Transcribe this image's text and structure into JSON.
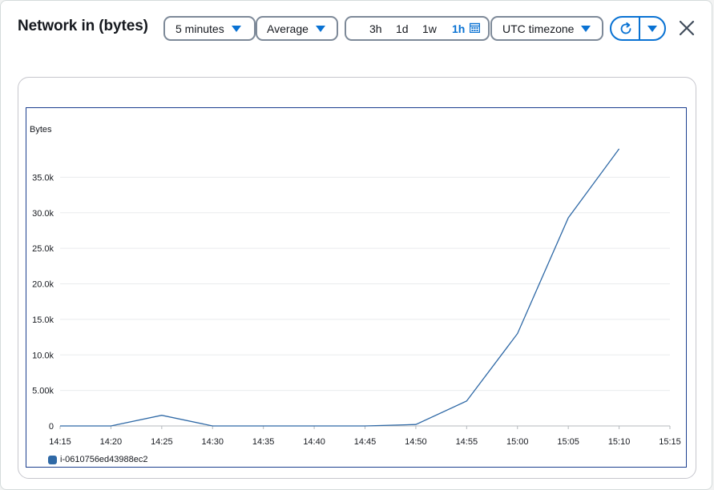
{
  "title": "Network in (bytes)",
  "controls": {
    "period": "5 minutes",
    "statistic": "Average",
    "ranges": [
      "3h",
      "1d",
      "1w",
      "1h"
    ],
    "active_range": "1h",
    "timezone": "UTC timezone"
  },
  "icons": {
    "dropdown": "caret-down-icon",
    "calendar": "calendar-icon",
    "refresh": "refresh-icon",
    "close": "close-icon"
  },
  "colors": {
    "accent": "#0972d3",
    "series": "#2f69a6",
    "frame": "#1c3f8f"
  },
  "chart_data": {
    "type": "line",
    "ylabel": "Bytes",
    "x_ticks": [
      "14:15",
      "14:20",
      "14:25",
      "14:30",
      "14:35",
      "14:40",
      "14:45",
      "14:50",
      "14:55",
      "15:00",
      "15:05",
      "15:10",
      "15:15"
    ],
    "y_ticks": [
      "0",
      "5.00k",
      "10.0k",
      "15.0k",
      "20.0k",
      "25.0k",
      "30.0k",
      "35.0k"
    ],
    "ylim": [
      0,
      40000
    ],
    "grid": true,
    "series": [
      {
        "name": "i-0610756ed43988ec2",
        "x": [
          "14:15",
          "14:20",
          "14:25",
          "14:30",
          "14:35",
          "14:40",
          "14:45",
          "14:50",
          "14:55",
          "15:00",
          "15:05",
          "15:10"
        ],
        "values": [
          0,
          0,
          1500,
          0,
          0,
          0,
          0,
          200,
          3500,
          13000,
          29300,
          39000
        ]
      }
    ],
    "legend": "bottom-left"
  }
}
